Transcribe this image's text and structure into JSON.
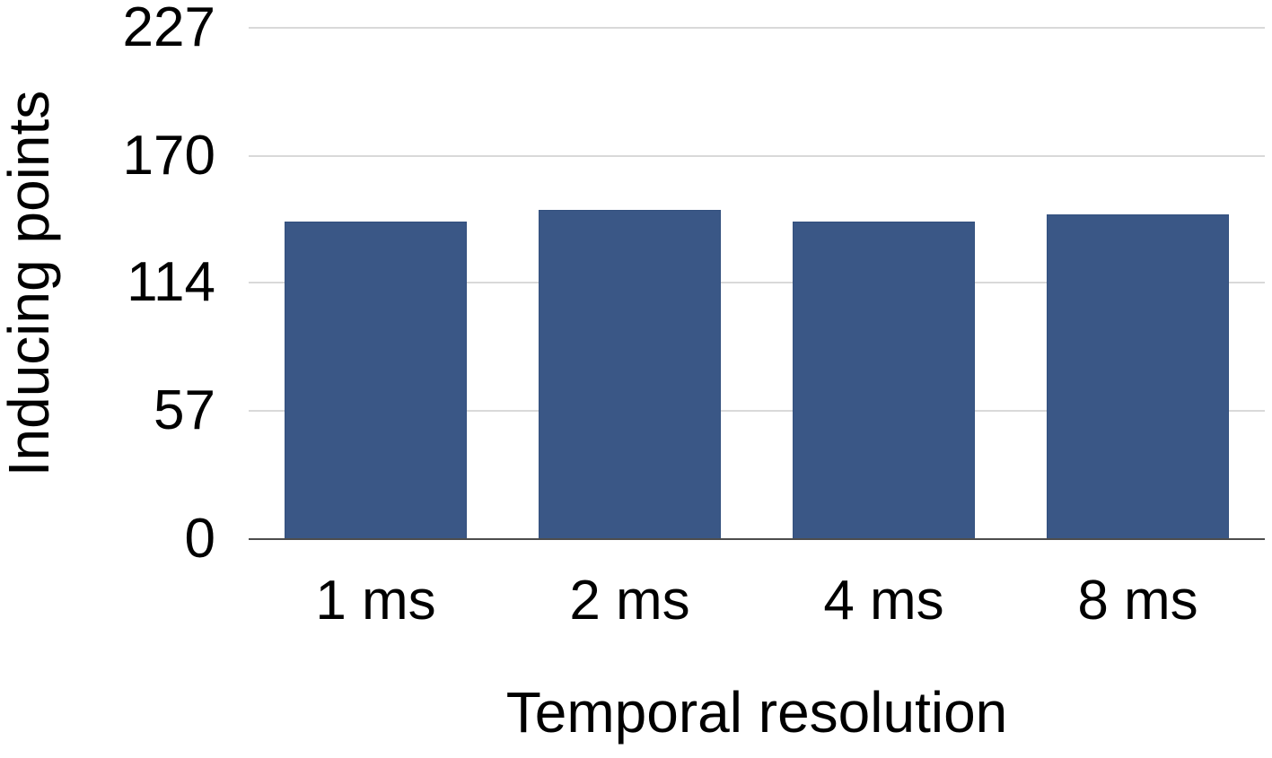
{
  "chart_data": {
    "type": "bar",
    "title": "",
    "xlabel": "Temporal resolution",
    "ylabel": "Inducing points",
    "categories": [
      "1 ms",
      "2 ms",
      "4 ms",
      "8 ms"
    ],
    "values": [
      141,
      146,
      141,
      144
    ],
    "yticks": [
      0,
      57,
      114,
      170,
      227
    ],
    "ylim": [
      0,
      227
    ],
    "grid": "horizontal",
    "legend": "none",
    "bar_color": "#3a5786",
    "bar_border_color": "#33507e",
    "gridline_color": "#d9d9d9",
    "baseline_color": "#4d4d4d",
    "text_color": "#000000",
    "background_color": "#ffffff"
  }
}
